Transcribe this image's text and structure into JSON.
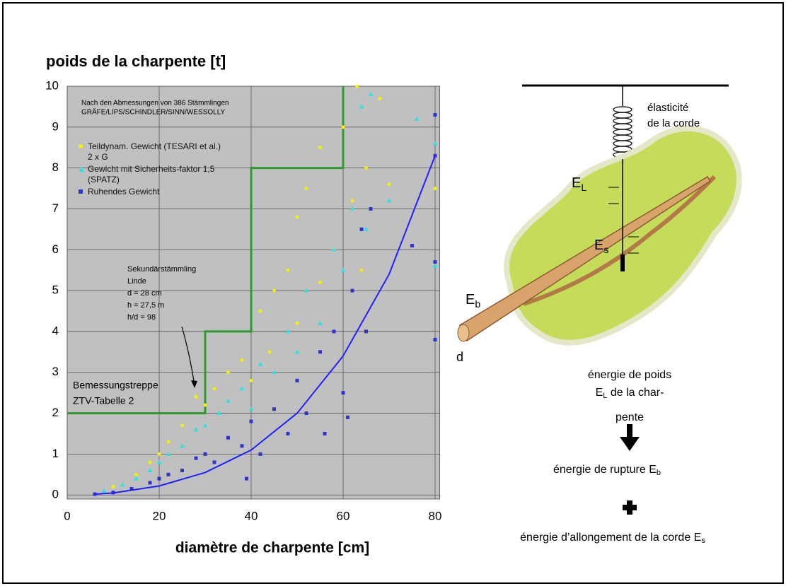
{
  "chart_data": {
    "type": "scatter",
    "title": "poids de la charpente [t]",
    "x_label": "diamètre de charpente [cm]",
    "xlim": [
      0,
      81
    ],
    "ylim": [
      -0.1,
      10
    ],
    "xticks": [
      0,
      20,
      40,
      60,
      80
    ],
    "yticks": [
      0,
      1,
      2,
      3,
      4,
      5,
      6,
      7,
      8,
      9,
      10
    ],
    "grid": true,
    "background": "#c0c0c0",
    "annotations": {
      "source": [
        "Nach den Abmessungen von 386 Stämmlingen",
        "GRÄFE/LIPS/SCHINDLER/SINN/WESSOLLY"
      ],
      "specimen": [
        "Sekundärstämmling",
        "Linde",
        "d = 28 cm",
        "h = 27,5 m",
        "h/d = 98"
      ],
      "step_label": [
        "Bemessungstreppe",
        "ZTV-Tabelle 2"
      ]
    },
    "series": [
      {
        "name": "Teildynam. Gewicht (TESARI et al.) 2 x G",
        "color": "#f2f200",
        "marker": "circle",
        "x": [
          10,
          15,
          18,
          20,
          22,
          25,
          28,
          30,
          32,
          35,
          38,
          40,
          42,
          44,
          45,
          48,
          50,
          50,
          52,
          55,
          55,
          58,
          60,
          62,
          63,
          64,
          65,
          68,
          70,
          80
        ],
        "values": [
          0.2,
          0.5,
          0.8,
          1.0,
          1.3,
          1.7,
          2.4,
          2.2,
          2.6,
          3.0,
          3.3,
          2.8,
          4.5,
          3.5,
          5.0,
          5.5,
          4.2,
          6.8,
          7.5,
          5.2,
          8.5,
          6.0,
          9.0,
          7.2,
          10.0,
          5.5,
          8.0,
          9.7,
          7.6,
          7.5
        ]
      },
      {
        "name": "Gewicht mit Sicherheits-faktor 1,5 (SPATZ)",
        "color": "#33e0e0",
        "marker": "triangle",
        "x": [
          8,
          12,
          15,
          18,
          20,
          22,
          25,
          28,
          30,
          33,
          35,
          38,
          40,
          42,
          45,
          48,
          50,
          52,
          55,
          58,
          60,
          62,
          64,
          65,
          66,
          70,
          76,
          80,
          80
        ],
        "values": [
          0.1,
          0.25,
          0.4,
          0.6,
          0.8,
          1.0,
          1.2,
          1.6,
          1.7,
          2.0,
          2.3,
          2.6,
          2.1,
          3.2,
          3.0,
          4.0,
          3.5,
          5.0,
          4.2,
          6.0,
          5.5,
          7.0,
          9.5,
          6.5,
          9.8,
          7.2,
          9.2,
          8.6,
          5.6
        ]
      },
      {
        "name": "Ruhendes Gewicht",
        "color": "#3333cc",
        "marker": "square",
        "x": [
          6,
          10,
          14,
          18,
          20,
          22,
          25,
          28,
          30,
          32,
          35,
          38,
          39,
          40,
          42,
          45,
          48,
          50,
          52,
          55,
          56,
          58,
          60,
          61,
          62,
          64,
          65,
          66,
          75,
          80,
          80,
          80,
          80
        ],
        "values": [
          0.02,
          0.06,
          0.15,
          0.3,
          0.4,
          0.5,
          0.6,
          0.9,
          1.0,
          0.8,
          1.4,
          1.2,
          0.4,
          1.8,
          1.0,
          2.1,
          1.5,
          2.8,
          2.0,
          3.5,
          1.5,
          4.0,
          2.5,
          1.9,
          5.0,
          6.5,
          4.0,
          7.0,
          6.1,
          9.3,
          8.3,
          5.7,
          3.8
        ]
      }
    ],
    "step_line": {
      "color": "#2e9a2e",
      "x": [
        0,
        30,
        30,
        40,
        40,
        60,
        60
      ],
      "values": [
        2,
        2,
        4,
        4,
        8,
        8,
        10
      ]
    },
    "fit_curve": {
      "color": "#2020ff",
      "x": [
        6,
        10,
        20,
        30,
        40,
        50,
        60,
        70,
        80
      ],
      "values": [
        0.02,
        0.05,
        0.22,
        0.55,
        1.1,
        2.0,
        3.4,
        5.4,
        8.3
      ]
    }
  },
  "diagram": {
    "elasticity": [
      "élasticité",
      "de la corde"
    ],
    "e_l": {
      "main": "E",
      "sub": "L"
    },
    "e_s": {
      "main": "E",
      "sub": "s"
    },
    "e_b": {
      "main": "E",
      "sub": "b"
    },
    "d": "d",
    "weight_energy": {
      "line1": "énergie de poids",
      "line2_main": "E",
      "line2_sub": "L",
      "line2_rest": " de la char-",
      "line3": "pente"
    },
    "rupture": {
      "main": "énergie de rupture E",
      "sub": "b"
    },
    "elongation": {
      "main": "énergie d’allongement de la corde E",
      "sub": "s"
    }
  }
}
